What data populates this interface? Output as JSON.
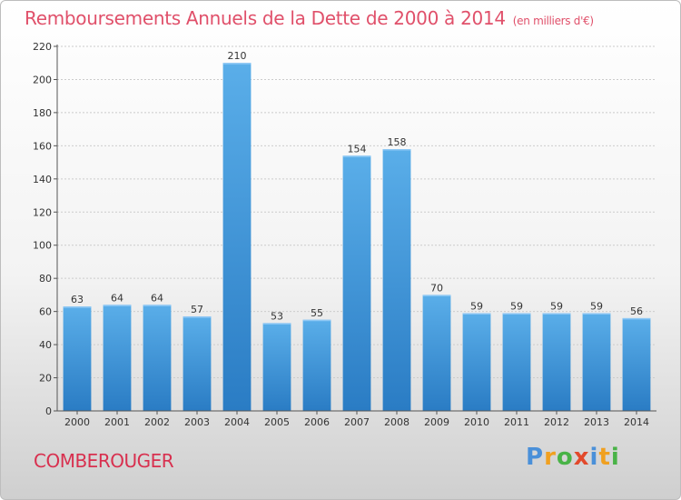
{
  "header": {
    "title": "Remboursements Annuels de la Dette de 2000 à 2014",
    "unit": "(en milliers d'€)"
  },
  "commune": "COMBEROUGER",
  "brand": {
    "letters": [
      "P",
      "r",
      "o",
      "x",
      "i",
      "t",
      "i"
    ]
  },
  "colors": {
    "bar": "#3a8fd6",
    "bar_light": "#5aaae8",
    "title": "#e0506a"
  },
  "chart_data": {
    "type": "bar",
    "title": "Remboursements Annuels de la Dette de 2000 à 2014",
    "unit": "(en milliers d'€)",
    "categories": [
      "2000",
      "2001",
      "2002",
      "2003",
      "2004",
      "2005",
      "2006",
      "2007",
      "2008",
      "2009",
      "2010",
      "2011",
      "2012",
      "2013",
      "2014"
    ],
    "values": [
      63,
      64,
      64,
      57,
      210,
      53,
      55,
      154,
      158,
      70,
      59,
      59,
      59,
      59,
      56
    ],
    "ylim": [
      0,
      220
    ],
    "yticks": [
      0,
      20,
      40,
      60,
      80,
      100,
      120,
      140,
      160,
      180,
      200,
      220
    ],
    "grid": true,
    "xlabel": "",
    "ylabel": ""
  }
}
